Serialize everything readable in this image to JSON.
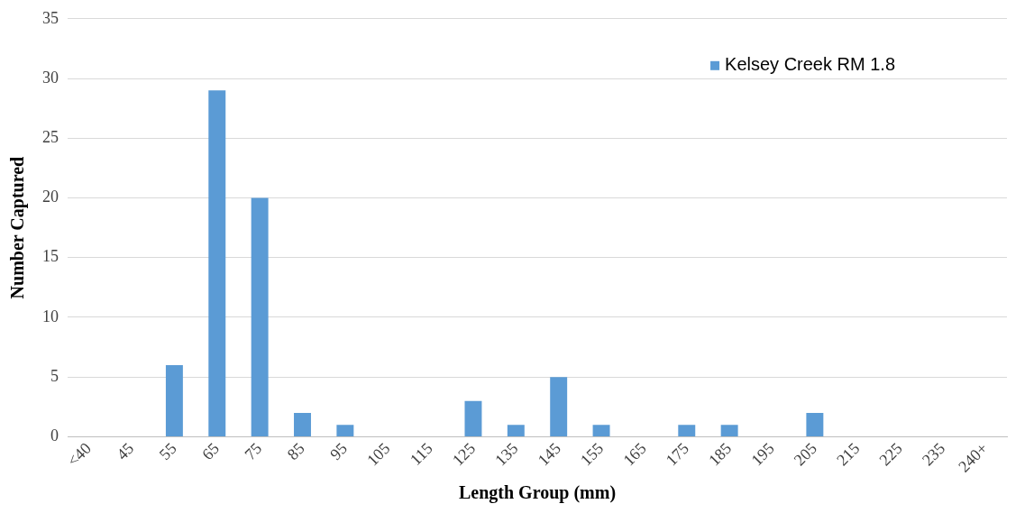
{
  "chart_data": {
    "type": "bar",
    "xlabel": "Length Group (mm)",
    "ylabel": "Number Captured",
    "categories": [
      "<40",
      "45",
      "55",
      "65",
      "75",
      "85",
      "95",
      "105",
      "115",
      "125",
      "135",
      "145",
      "155",
      "165",
      "175",
      "185",
      "195",
      "205",
      "215",
      "225",
      "235",
      "240+"
    ],
    "series": [
      {
        "name": "Kelsey Creek RM 1.8",
        "color": "#5b9bd5",
        "values": [
          0,
          0,
          6,
          29,
          20,
          2,
          1,
          0,
          0,
          3,
          1,
          5,
          1,
          0,
          1,
          1,
          0,
          2,
          0,
          0,
          0,
          0
        ]
      }
    ],
    "ylim": [
      0,
      35
    ],
    "yticks": [
      0,
      5,
      10,
      15,
      20,
      25,
      30,
      35
    ],
    "grid": "y",
    "legend": "top right"
  }
}
